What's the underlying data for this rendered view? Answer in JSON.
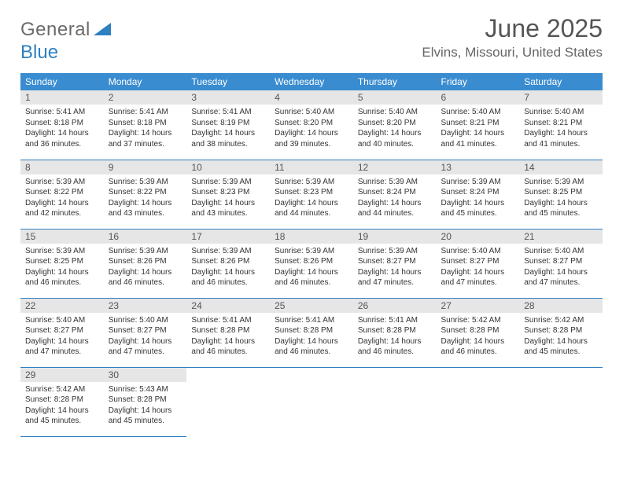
{
  "logo": {
    "part1": "General",
    "part2": "Blue"
  },
  "title": {
    "month": "June 2025",
    "location": "Elvins, Missouri, United States"
  },
  "colors": {
    "header_bg": "#3a8cd0",
    "header_fg": "#ffffff",
    "row_divider": "#2f7fc1",
    "daynum_bg": "#e6e6e6",
    "logo_gray": "#6b6b6b",
    "logo_blue": "#2f7fc1"
  },
  "weekdays": [
    "Sunday",
    "Monday",
    "Tuesday",
    "Wednesday",
    "Thursday",
    "Friday",
    "Saturday"
  ],
  "weeks": [
    [
      {
        "n": "1",
        "sr": "5:41 AM",
        "ss": "8:18 PM",
        "dl": "14 hours and 36 minutes."
      },
      {
        "n": "2",
        "sr": "5:41 AM",
        "ss": "8:18 PM",
        "dl": "14 hours and 37 minutes."
      },
      {
        "n": "3",
        "sr": "5:41 AM",
        "ss": "8:19 PM",
        "dl": "14 hours and 38 minutes."
      },
      {
        "n": "4",
        "sr": "5:40 AM",
        "ss": "8:20 PM",
        "dl": "14 hours and 39 minutes."
      },
      {
        "n": "5",
        "sr": "5:40 AM",
        "ss": "8:20 PM",
        "dl": "14 hours and 40 minutes."
      },
      {
        "n": "6",
        "sr": "5:40 AM",
        "ss": "8:21 PM",
        "dl": "14 hours and 41 minutes."
      },
      {
        "n": "7",
        "sr": "5:40 AM",
        "ss": "8:21 PM",
        "dl": "14 hours and 41 minutes."
      }
    ],
    [
      {
        "n": "8",
        "sr": "5:39 AM",
        "ss": "8:22 PM",
        "dl": "14 hours and 42 minutes."
      },
      {
        "n": "9",
        "sr": "5:39 AM",
        "ss": "8:22 PM",
        "dl": "14 hours and 43 minutes."
      },
      {
        "n": "10",
        "sr": "5:39 AM",
        "ss": "8:23 PM",
        "dl": "14 hours and 43 minutes."
      },
      {
        "n": "11",
        "sr": "5:39 AM",
        "ss": "8:23 PM",
        "dl": "14 hours and 44 minutes."
      },
      {
        "n": "12",
        "sr": "5:39 AM",
        "ss": "8:24 PM",
        "dl": "14 hours and 44 minutes."
      },
      {
        "n": "13",
        "sr": "5:39 AM",
        "ss": "8:24 PM",
        "dl": "14 hours and 45 minutes."
      },
      {
        "n": "14",
        "sr": "5:39 AM",
        "ss": "8:25 PM",
        "dl": "14 hours and 45 minutes."
      }
    ],
    [
      {
        "n": "15",
        "sr": "5:39 AM",
        "ss": "8:25 PM",
        "dl": "14 hours and 46 minutes."
      },
      {
        "n": "16",
        "sr": "5:39 AM",
        "ss": "8:26 PM",
        "dl": "14 hours and 46 minutes."
      },
      {
        "n": "17",
        "sr": "5:39 AM",
        "ss": "8:26 PM",
        "dl": "14 hours and 46 minutes."
      },
      {
        "n": "18",
        "sr": "5:39 AM",
        "ss": "8:26 PM",
        "dl": "14 hours and 46 minutes."
      },
      {
        "n": "19",
        "sr": "5:39 AM",
        "ss": "8:27 PM",
        "dl": "14 hours and 47 minutes."
      },
      {
        "n": "20",
        "sr": "5:40 AM",
        "ss": "8:27 PM",
        "dl": "14 hours and 47 minutes."
      },
      {
        "n": "21",
        "sr": "5:40 AM",
        "ss": "8:27 PM",
        "dl": "14 hours and 47 minutes."
      }
    ],
    [
      {
        "n": "22",
        "sr": "5:40 AM",
        "ss": "8:27 PM",
        "dl": "14 hours and 47 minutes."
      },
      {
        "n": "23",
        "sr": "5:40 AM",
        "ss": "8:27 PM",
        "dl": "14 hours and 47 minutes."
      },
      {
        "n": "24",
        "sr": "5:41 AM",
        "ss": "8:28 PM",
        "dl": "14 hours and 46 minutes."
      },
      {
        "n": "25",
        "sr": "5:41 AM",
        "ss": "8:28 PM",
        "dl": "14 hours and 46 minutes."
      },
      {
        "n": "26",
        "sr": "5:41 AM",
        "ss": "8:28 PM",
        "dl": "14 hours and 46 minutes."
      },
      {
        "n": "27",
        "sr": "5:42 AM",
        "ss": "8:28 PM",
        "dl": "14 hours and 46 minutes."
      },
      {
        "n": "28",
        "sr": "5:42 AM",
        "ss": "8:28 PM",
        "dl": "14 hours and 45 minutes."
      }
    ],
    [
      {
        "n": "29",
        "sr": "5:42 AM",
        "ss": "8:28 PM",
        "dl": "14 hours and 45 minutes."
      },
      {
        "n": "30",
        "sr": "5:43 AM",
        "ss": "8:28 PM",
        "dl": "14 hours and 45 minutes."
      },
      null,
      null,
      null,
      null,
      null
    ]
  ],
  "labels": {
    "sunrise": "Sunrise: ",
    "sunset": "Sunset: ",
    "daylight": "Daylight: "
  }
}
